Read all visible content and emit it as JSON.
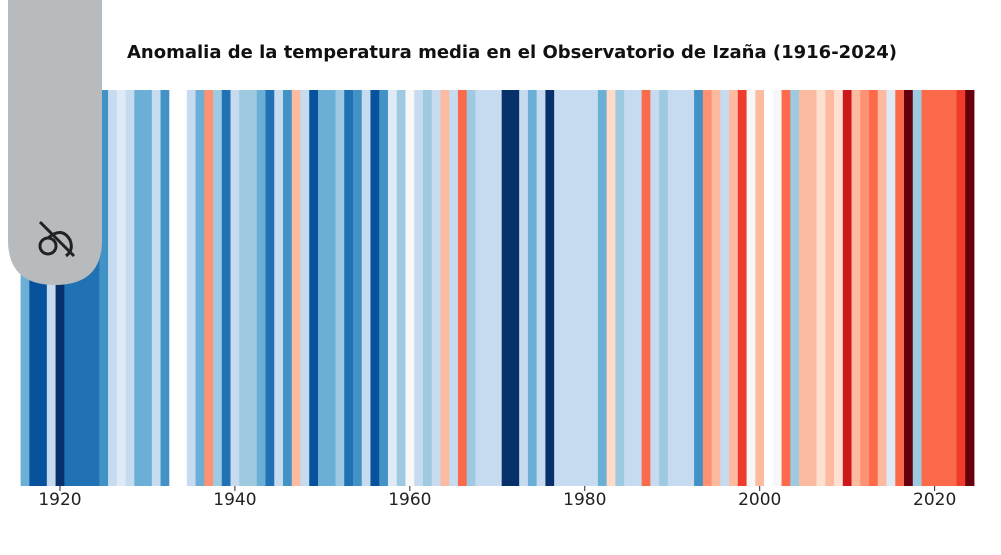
{
  "chart_data": {
    "type": "stripes",
    "title": "Anomalia de la temperatura media en el Observatorio de Izaña (1916-2024)",
    "x": [
      1916,
      1917,
      1918,
      1919,
      1920,
      1921,
      1922,
      1923,
      1924,
      1925,
      1926,
      1927,
      1928,
      1929,
      1930,
      1931,
      1932,
      1933,
      1934,
      1935,
      1936,
      1937,
      1938,
      1939,
      1940,
      1941,
      1942,
      1943,
      1944,
      1945,
      1946,
      1947,
      1948,
      1949,
      1950,
      1951,
      1952,
      1953,
      1954,
      1955,
      1956,
      1957,
      1958,
      1959,
      1960,
      1961,
      1962,
      1963,
      1964,
      1965,
      1966,
      1967,
      1968,
      1969,
      1970,
      1971,
      1972,
      1973,
      1974,
      1975,
      1976,
      1977,
      1978,
      1979,
      1980,
      1981,
      1982,
      1983,
      1984,
      1985,
      1986,
      1987,
      1988,
      1989,
      1990,
      1991,
      1992,
      1993,
      1994,
      1995,
      1996,
      1997,
      1998,
      1999,
      2000,
      2001,
      2002,
      2003,
      2004,
      2005,
      2006,
      2007,
      2008,
      2009,
      2010,
      2011,
      2012,
      2013,
      2014,
      2015,
      2016,
      2017,
      2018,
      2019,
      2020,
      2021,
      2022,
      2023,
      2024
    ],
    "colors": [
      "#6baed6",
      "#08519c",
      "#08519c",
      "#c6dbef",
      "#08306b",
      "#2171b5",
      "#2171b5",
      "#2171b5",
      "#2171b5",
      "#4292c6",
      "#c6dbef",
      "#deebf7",
      "#c6dbef",
      "#6baed6",
      "#6baed6",
      "#c6dbef",
      "#4292c6",
      "#ffffff",
      "#ffffff",
      "#c6dbef",
      "#6baed6",
      "#fc9272",
      "#9ecae1",
      "#2171b5",
      "#c6dbef",
      "#9ecae1",
      "#9ecae1",
      "#6baed6",
      "#2171b5",
      "#c6dbef",
      "#4292c6",
      "#fcbba1",
      "#c6dbef",
      "#08519c",
      "#6baed6",
      "#6baed6",
      "#9ecae1",
      "#2171b5",
      "#4292c6",
      "#c6dbef",
      "#08519c",
      "#4292c6",
      "#deebf7",
      "#9ecae1",
      "#f7f7f7",
      "#c6dbef",
      "#9ecae1",
      "#c6dbef",
      "#fcbba1",
      "#c6dbef",
      "#fb6a4a",
      "#9ecae1",
      "#c6dbef",
      "#c6dbef",
      "#c6dbef",
      "#08306b",
      "#08306b",
      "#c6dbef",
      "#6baed6",
      "#c6dbef",
      "#08306b",
      "#c6dbef",
      "#c6dbef",
      "#c6dbef",
      "#c6dbef",
      "#c6dbef",
      "#6baed6",
      "#fddbc7",
      "#9ecae1",
      "#c6dbef",
      "#c6dbef",
      "#fb6a4a",
      "#c6dbef",
      "#9ecae1",
      "#c6dbef",
      "#c6dbef",
      "#c6dbef",
      "#4292c6",
      "#fc9272",
      "#fcbba1",
      "#c6dbef",
      "#fcbba1",
      "#ef3b2c",
      "#f7f7f7",
      "#fcbba1",
      "#ffffff",
      "#f7f7f7",
      "#fb6a4a",
      "#9ecae1",
      "#fcbba1",
      "#fcbba1",
      "#fee0d2",
      "#fcbba1",
      "#fee0d2",
      "#cb181d",
      "#fcbba1",
      "#fc9272",
      "#fb6a4a",
      "#fcbba1",
      "#deebf7",
      "#fb6a4a",
      "#67000d",
      "#9ecae1",
      "#fb6a4a",
      "#fb6a4a",
      "#fb6a4a",
      "#fb6a4a",
      "#ef3b2c",
      "#67000d"
    ],
    "xlim": [
      1915.5,
      2024.5
    ],
    "xticks": [
      1920,
      1940,
      1960,
      1980,
      2000,
      2020
    ]
  }
}
